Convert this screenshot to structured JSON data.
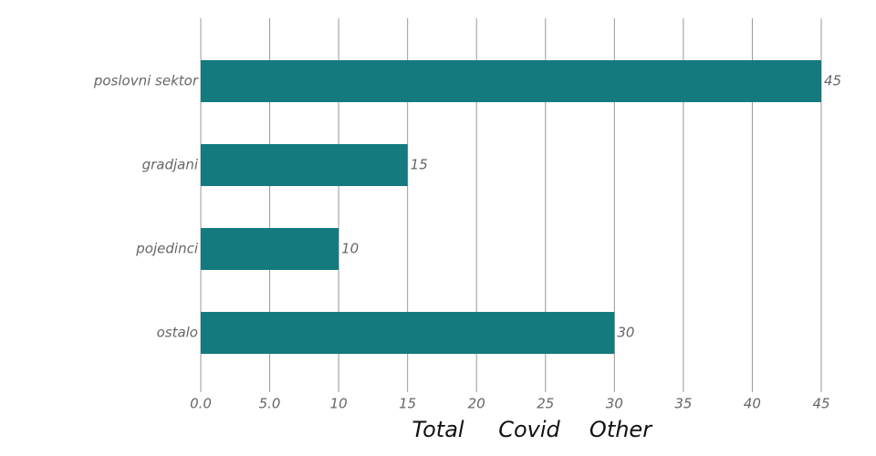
{
  "chart_data": {
    "type": "bar",
    "orientation": "horizontal",
    "categories": [
      "poslovni sektor",
      "gradjani",
      "pojedinci",
      "ostalo"
    ],
    "values": [
      45,
      15,
      10,
      30
    ],
    "color": "#157a7d",
    "xlim": [
      0,
      45
    ],
    "xticks": [
      {
        "value": 0,
        "label": "0.0"
      },
      {
        "value": 5,
        "label": "5.0"
      },
      10,
      15,
      20,
      25,
      30,
      35,
      40,
      45
    ],
    "grid": true,
    "tabs": [
      "Total",
      "Covid",
      "Other"
    ]
  }
}
